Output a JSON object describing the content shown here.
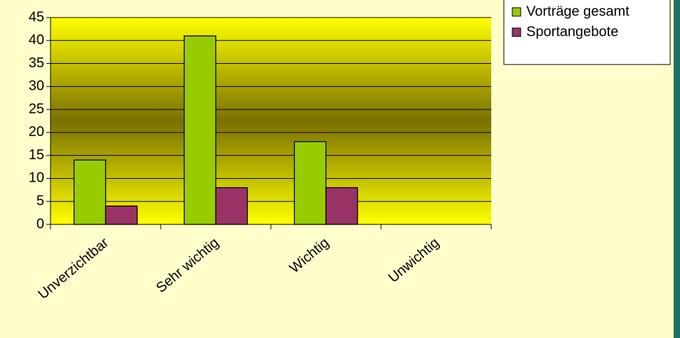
{
  "chart_data": {
    "type": "bar",
    "categories": [
      "Unverzichtbar",
      "Sehr wichtig",
      "Wichtig",
      "Unwichtig"
    ],
    "series": [
      {
        "name": "Vorträge gesamt",
        "color": "#99cc00",
        "values": [
          14,
          41,
          18,
          0
        ]
      },
      {
        "name": "Sportangebote",
        "color": "#993366",
        "values": [
          4,
          8,
          8,
          0
        ]
      }
    ],
    "ylim": [
      0,
      45
    ],
    "yticks": [
      0,
      5,
      10,
      15,
      20,
      25,
      30,
      35,
      40,
      45
    ],
    "grid": true,
    "legend": "top-right"
  }
}
